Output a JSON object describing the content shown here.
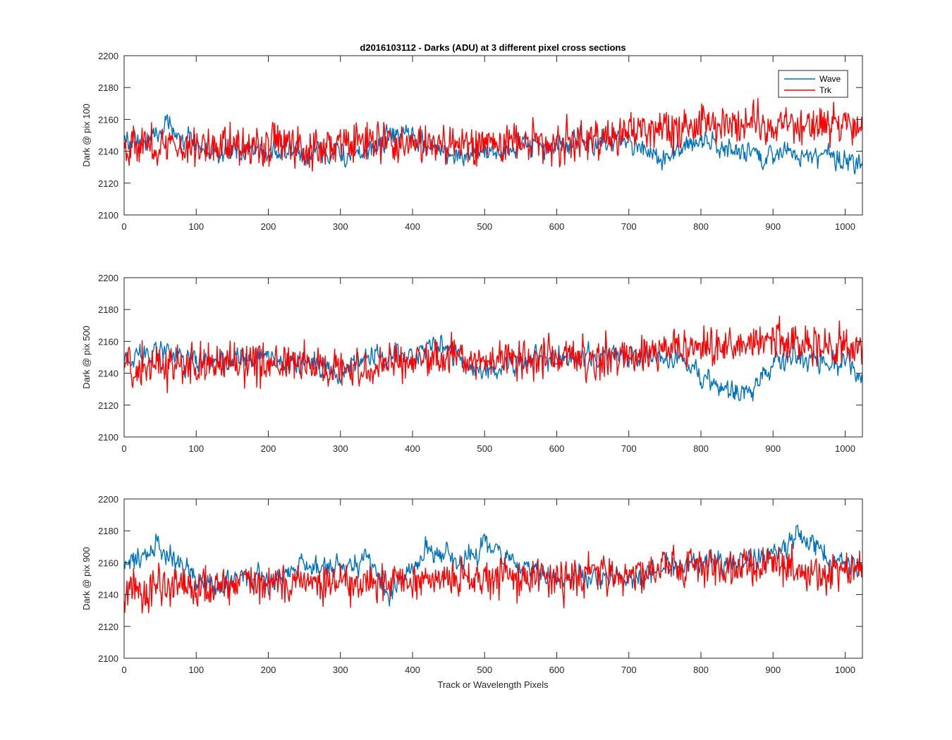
{
  "chart_data": [
    {
      "type": "line",
      "title": "d2016103112 - Darks (ADU) at 3 different pixel cross sections",
      "ylabel": "Dark @ pix 100",
      "xlabel": "",
      "xlim": [
        0,
        1024
      ],
      "ylim": [
        2100,
        2200
      ],
      "xticks": [
        0,
        100,
        200,
        300,
        400,
        500,
        600,
        700,
        800,
        900,
        1000
      ],
      "yticks": [
        2100,
        2120,
        2140,
        2160,
        2180,
        2200
      ],
      "legend": {
        "position": "top-right",
        "entries": [
          "Wave",
          "Trk"
        ]
      },
      "series": [
        {
          "name": "Wave",
          "color": "#0072BD",
          "x": [
            0,
            30,
            60,
            80,
            120,
            160,
            200,
            240,
            280,
            330,
            380,
            420,
            460,
            500,
            540,
            600,
            640,
            680,
            720,
            760,
            790,
            830,
            880,
            920,
            970,
            1024
          ],
          "y": [
            2148,
            2145,
            2158,
            2150,
            2138,
            2140,
            2141,
            2138,
            2140,
            2136,
            2152,
            2143,
            2138,
            2140,
            2142,
            2144,
            2146,
            2145,
            2140,
            2136,
            2148,
            2142,
            2136,
            2140,
            2138,
            2134
          ]
        },
        {
          "name": "Trk",
          "color": "#FF0000",
          "x": [
            0,
            50,
            100,
            150,
            200,
            250,
            300,
            350,
            400,
            450,
            500,
            550,
            600,
            650,
            700,
            750,
            800,
            850,
            900,
            950,
            1024
          ],
          "y": [
            2145,
            2143,
            2143,
            2145,
            2144,
            2143,
            2144,
            2146,
            2145,
            2143,
            2145,
            2146,
            2144,
            2147,
            2152,
            2155,
            2156,
            2159,
            2158,
            2157,
            2156
          ]
        }
      ]
    },
    {
      "type": "line",
      "title": "",
      "ylabel": "Dark @ pix 500",
      "xlabel": "",
      "xlim": [
        0,
        1024
      ],
      "ylim": [
        2100,
        2200
      ],
      "xticks": [
        0,
        100,
        200,
        300,
        400,
        500,
        600,
        700,
        800,
        900,
        1000
      ],
      "yticks": [
        2100,
        2120,
        2140,
        2160,
        2180,
        2200
      ],
      "series": [
        {
          "name": "Wave",
          "color": "#0072BD",
          "x": [
            0,
            40,
            80,
            120,
            160,
            200,
            260,
            300,
            350,
            400,
            440,
            480,
            520,
            560,
            600,
            640,
            680,
            720,
            760,
            800,
            840,
            870,
            900,
            940,
            980,
            1024
          ],
          "y": [
            2150,
            2155,
            2150,
            2145,
            2148,
            2150,
            2145,
            2138,
            2152,
            2150,
            2160,
            2142,
            2142,
            2150,
            2150,
            2148,
            2150,
            2150,
            2150,
            2138,
            2130,
            2128,
            2145,
            2150,
            2148,
            2140
          ]
        },
        {
          "name": "Trk",
          "color": "#FF0000",
          "x": [
            0,
            50,
            100,
            150,
            200,
            250,
            300,
            350,
            400,
            450,
            500,
            550,
            600,
            650,
            700,
            750,
            800,
            850,
            900,
            950,
            1024
          ],
          "y": [
            2145,
            2146,
            2144,
            2145,
            2146,
            2145,
            2143,
            2146,
            2148,
            2150,
            2148,
            2150,
            2150,
            2149,
            2152,
            2154,
            2155,
            2158,
            2160,
            2156,
            2158
          ]
        }
      ]
    },
    {
      "type": "line",
      "title": "",
      "ylabel": "Dark @ pix 900",
      "xlabel": "Track or Wavelength Pixels",
      "xlim": [
        0,
        1024
      ],
      "ylim": [
        2100,
        2200
      ],
      "xticks": [
        0,
        100,
        200,
        300,
        400,
        500,
        600,
        700,
        800,
        900,
        1000
      ],
      "yticks": [
        2100,
        2120,
        2140,
        2160,
        2180,
        2200
      ],
      "series": [
        {
          "name": "Wave",
          "color": "#0072BD",
          "x": [
            0,
            20,
            40,
            70,
            100,
            130,
            170,
            210,
            250,
            300,
            340,
            370,
            400,
            430,
            470,
            500,
            540,
            580,
            620,
            660,
            700,
            760,
            820,
            880,
            920,
            940,
            980,
            1024
          ],
          "y": [
            2160,
            2162,
            2168,
            2165,
            2150,
            2145,
            2152,
            2150,
            2158,
            2158,
            2160,
            2140,
            2158,
            2170,
            2160,
            2170,
            2158,
            2155,
            2148,
            2152,
            2150,
            2158,
            2160,
            2162,
            2172,
            2180,
            2162,
            2158
          ]
        },
        {
          "name": "Trk",
          "color": "#FF0000",
          "x": [
            0,
            50,
            100,
            150,
            200,
            250,
            300,
            350,
            400,
            450,
            500,
            550,
            600,
            650,
            700,
            750,
            800,
            850,
            900,
            950,
            1024
          ],
          "y": [
            2140,
            2145,
            2145,
            2146,
            2147,
            2148,
            2147,
            2148,
            2148,
            2150,
            2150,
            2150,
            2150,
            2152,
            2153,
            2155,
            2158,
            2158,
            2158,
            2155,
            2156
          ]
        }
      ]
    }
  ]
}
